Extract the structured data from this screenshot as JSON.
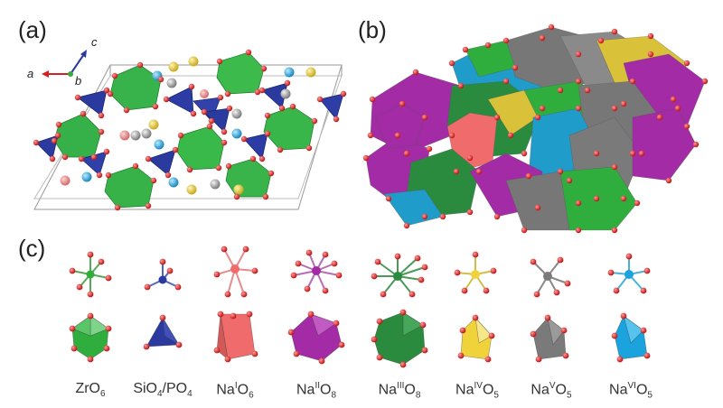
{
  "panels": {
    "a": "(a)",
    "b": "(b)",
    "c": "(c)"
  },
  "axes": {
    "a": "a",
    "b": "b",
    "c": "c"
  },
  "colors": {
    "Zr": "#2fae3e",
    "Si_P": "#2b3a9e",
    "NaI": "#f06b6b",
    "NaII": "#a32ba5",
    "NaIII": "#2a8b3f",
    "NaIV": "#f0d23b",
    "NaV": "#7a7a7a",
    "NaVI": "#1aa3dd",
    "oxygen": "#e01b1b"
  },
  "polyhedra": [
    {
      "name": "zro6",
      "base": "ZrO",
      "sub": "6",
      "sup": "",
      "tail_base": "",
      "tail_sub": ""
    },
    {
      "name": "sio4po4",
      "base": "SiO",
      "sub": "4",
      "sup": "",
      "tail_base": "/PO",
      "tail_sub": "4"
    },
    {
      "name": "na1o6",
      "base": "Na",
      "sub": "",
      "sup": "I",
      "tail_base": "O",
      "tail_sub": "6"
    },
    {
      "name": "na2o8",
      "base": "Na",
      "sub": "",
      "sup": "II",
      "tail_base": "O",
      "tail_sub": "8"
    },
    {
      "name": "na3o8",
      "base": "Na",
      "sub": "",
      "sup": "III",
      "tail_base": "O",
      "tail_sub": "8"
    },
    {
      "name": "na4o5",
      "base": "Na",
      "sub": "",
      "sup": "IV",
      "tail_base": "O",
      "tail_sub": "5"
    },
    {
      "name": "na5o5",
      "base": "Na",
      "sub": "",
      "sup": "V",
      "tail_base": "O",
      "tail_sub": "5"
    },
    {
      "name": "na6o5",
      "base": "Na",
      "sub": "",
      "sup": "VI",
      "tail_base": "O",
      "tail_sub": "5"
    }
  ]
}
